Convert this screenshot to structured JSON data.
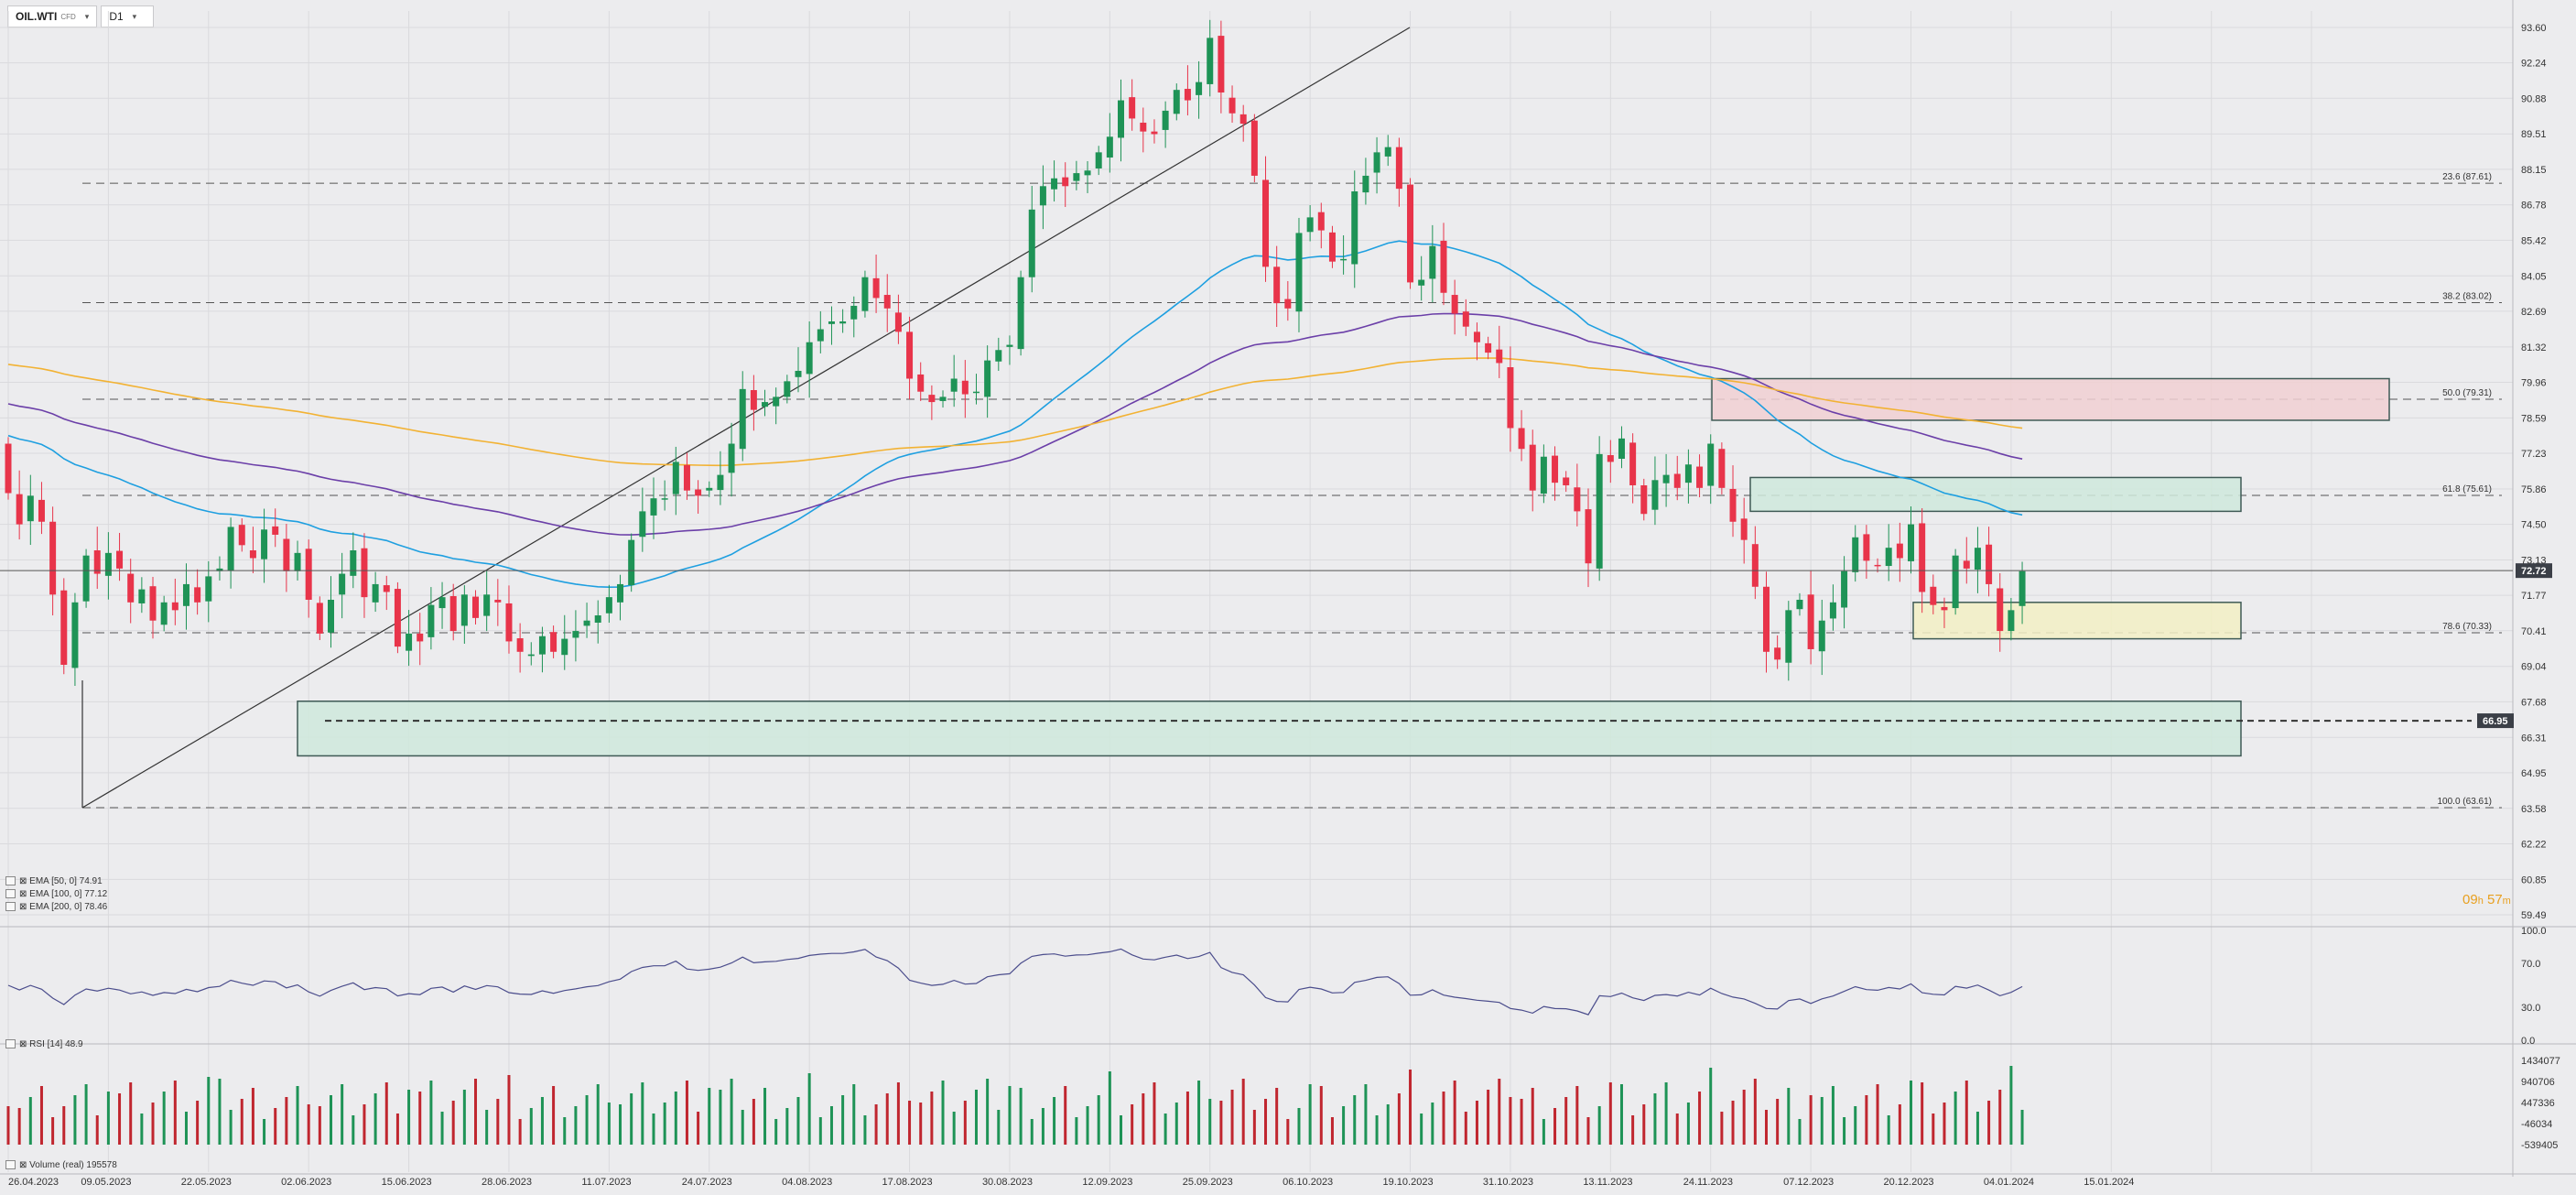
{
  "toolbar": {
    "symbol": "OIL.WTI",
    "symbol_sub": "CFD",
    "timeframe": "D1"
  },
  "price_axis": [
    "93.60",
    "92.24",
    "90.88",
    "89.51",
    "88.15",
    "86.78",
    "85.42",
    "84.05",
    "82.69",
    "81.32",
    "79.96",
    "78.59",
    "77.23",
    "75.86",
    "74.50",
    "73.13",
    "71.77",
    "70.41",
    "69.04",
    "67.68",
    "66.31",
    "64.95",
    "63.58",
    "62.22",
    "60.85",
    "59.49"
  ],
  "current_price": "72.72",
  "level_label": "66.95",
  "fib_labels": [
    {
      "text": "23.6 (87.61)",
      "price": 87.61
    },
    {
      "text": "38.2 (83.02)",
      "price": 83.02
    },
    {
      "text": "50.0 (79.31)",
      "price": 79.31
    },
    {
      "text": "61.8 (75.61)",
      "price": 75.61
    },
    {
      "text": "78.6 (70.33)",
      "price": 70.33
    },
    {
      "text": "100.0 (63.61)",
      "price": 63.61
    }
  ],
  "indicators": [
    {
      "label": "EMA [50, 0]",
      "value": "74.91",
      "color": "#1e9fe0"
    },
    {
      "label": "EMA [100, 0]",
      "value": "77.12",
      "color": "#6b3fa8"
    },
    {
      "label": "EMA [200, 0]",
      "value": "78.46",
      "color": "#f2b233"
    }
  ],
  "timer": {
    "hours": "09",
    "h": "h",
    "minutes": "57",
    "m": "m"
  },
  "rsi": {
    "label": "RSI [14]",
    "value": "48.9",
    "axis": [
      "100.0",
      "70.0",
      "30.0",
      "0.0"
    ],
    "color": "#4b4d8c"
  },
  "volume": {
    "label": "Volume (real)",
    "value": "195578",
    "axis": [
      "1434077",
      "940706",
      "447336",
      "-46034",
      "-539405"
    ]
  },
  "date_labels": [
    "26.04.2023",
    "09.05.2023",
    "22.05.2023",
    "02.06.2023",
    "15.06.2023",
    "28.06.2023",
    "11.07.2023",
    "24.07.2023",
    "04.08.2023",
    "17.08.2023",
    "30.08.2023",
    "12.09.2023",
    "25.09.2023",
    "06.10.2023",
    "19.10.2023",
    "31.10.2023",
    "13.11.2023",
    "24.11.2023",
    "07.12.2023",
    "20.12.2023",
    "04.01.2024",
    "15.01.2024"
  ],
  "colors": {
    "bull": "#1e9356",
    "bear": "#e8344a",
    "grid": "#dadadd",
    "background": "#ececee"
  },
  "chart_data": {
    "type": "candlestick",
    "y_scale": "linear",
    "ylim": [
      59.49,
      93.6
    ],
    "closes": [
      75.7,
      74.5,
      75.6,
      74.6,
      71.8,
      69.1,
      71.5,
      73.3,
      72.6,
      73.4,
      72.8,
      71.5,
      72.0,
      70.8,
      71.5,
      71.2,
      72.2,
      71.5,
      72.5,
      72.8,
      74.4,
      73.7,
      73.2,
      74.3,
      74.1,
      72.7,
      73.4,
      71.6,
      70.3,
      71.6,
      72.6,
      73.5,
      71.7,
      72.2,
      71.9,
      69.8,
      70.3,
      70.0,
      71.4,
      71.7,
      70.4,
      71.8,
      70.9,
      71.8,
      71.5,
      70.0,
      69.6,
      69.5,
      70.2,
      69.6,
      70.1,
      70.4,
      70.8,
      71.0,
      71.7,
      72.2,
      73.9,
      75.0,
      75.5,
      75.5,
      76.9,
      75.8,
      75.6,
      75.9,
      76.4,
      77.6,
      79.7,
      78.9,
      79.2,
      79.4,
      80.0,
      80.4,
      81.5,
      82.0,
      82.3,
      82.3,
      82.9,
      84.0,
      83.2,
      82.8,
      81.9,
      80.1,
      79.6,
      79.2,
      79.4,
      80.1,
      79.5,
      79.6,
      80.8,
      81.2,
      81.4,
      84.0,
      86.6,
      87.5,
      87.8,
      87.5,
      88.0,
      88.1,
      88.8,
      89.4,
      90.8,
      90.1,
      89.6,
      89.5,
      90.4,
      91.2,
      90.8,
      91.5,
      93.2,
      91.1,
      90.3,
      89.9,
      87.9,
      84.4,
      83.0,
      82.8,
      85.7,
      86.3,
      85.8,
      84.6,
      84.7,
      87.3,
      87.9,
      88.8,
      89.0,
      87.4,
      83.8,
      83.9,
      85.2,
      83.4,
      82.6,
      82.1,
      81.5,
      81.1,
      80.7,
      78.2,
      77.4,
      75.8,
      77.1,
      76.1,
      76.0,
      75.0,
      73.0,
      77.2,
      76.9,
      77.8,
      76.0,
      74.9,
      76.2,
      76.4,
      75.9,
      76.8,
      75.9,
      77.6,
      75.9,
      74.6,
      73.9,
      72.1,
      69.6,
      69.3,
      71.2,
      71.6,
      69.7,
      70.8,
      71.5,
      72.7,
      74.0,
      73.1,
      72.9,
      73.6,
      73.2,
      74.5,
      71.9,
      71.4,
      71.2,
      73.3,
      72.8,
      73.6,
      72.2,
      70.4,
      71.2,
      72.7
    ]
  }
}
